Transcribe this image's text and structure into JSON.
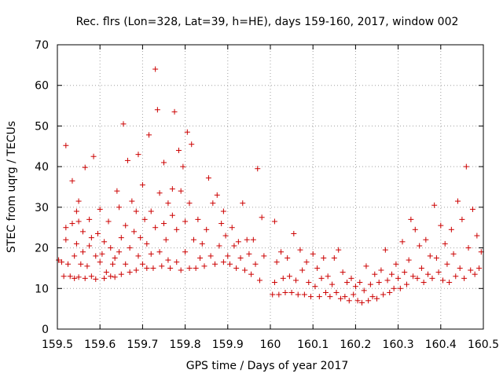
{
  "chart_data": {
    "type": "scatter",
    "title": "Rec. flrs (Lon=328, Lat=39, h=HE), days 159-160, 2017, window 002",
    "xlabel": "GPS time / Days of year 2017",
    "ylabel": "STEC from uqrg / TECUs",
    "xlim": [
      159.5,
      160.5
    ],
    "ylim": [
      0,
      70
    ],
    "xticks": [
      159.5,
      159.6,
      159.7,
      159.8,
      159.9,
      160,
      160.1,
      160.2,
      160.3,
      160.4,
      160.5
    ],
    "xtick_labels": [
      "159.5",
      "159.6",
      "159.7",
      "159.8",
      "159.9",
      "160",
      "160.1",
      "160.2",
      "160.3",
      "160.4",
      "160.5"
    ],
    "yticks": [
      0,
      10,
      20,
      30,
      40,
      50,
      60,
      70
    ],
    "ytick_labels": [
      "0",
      "10",
      "20",
      "30",
      "40",
      "50",
      "60",
      "70"
    ],
    "grid": true,
    "marker": "+",
    "marker_color": "#cc0000",
    "series": [
      {
        "name": "STEC",
        "points": [
          [
            159.503,
            17.0
          ],
          [
            159.51,
            16.5
          ],
          [
            159.515,
            13.0
          ],
          [
            159.52,
            45.2
          ],
          [
            159.52,
            25.0
          ],
          [
            159.52,
            22.0
          ],
          [
            159.525,
            16.0
          ],
          [
            159.53,
            13.0
          ],
          [
            159.535,
            26.0
          ],
          [
            159.535,
            36.5
          ],
          [
            159.54,
            12.5
          ],
          [
            159.54,
            18.0
          ],
          [
            159.545,
            21.0
          ],
          [
            159.545,
            29.0
          ],
          [
            159.55,
            26.5
          ],
          [
            159.55,
            31.5
          ],
          [
            159.55,
            12.8
          ],
          [
            159.555,
            16.0
          ],
          [
            159.56,
            24.0
          ],
          [
            159.56,
            19.0
          ],
          [
            159.565,
            12.5
          ],
          [
            159.565,
            39.8
          ],
          [
            159.57,
            15.5
          ],
          [
            159.575,
            20.5
          ],
          [
            159.575,
            27.0
          ],
          [
            159.58,
            13.0
          ],
          [
            159.58,
            22.5
          ],
          [
            159.585,
            42.5
          ],
          [
            159.59,
            18.0
          ],
          [
            159.59,
            12.3
          ],
          [
            159.595,
            23.5
          ],
          [
            159.6,
            16.5
          ],
          [
            159.6,
            29.5
          ],
          [
            159.605,
            18.5
          ],
          [
            159.61,
            12.5
          ],
          [
            159.61,
            21.5
          ],
          [
            159.615,
            14.0
          ],
          [
            159.62,
            26.5
          ],
          [
            159.625,
            13.0
          ],
          [
            159.625,
            20.0
          ],
          [
            159.63,
            16.0
          ],
          [
            159.635,
            17.5
          ],
          [
            159.635,
            12.8
          ],
          [
            159.64,
            34.0
          ],
          [
            159.645,
            19.0
          ],
          [
            159.645,
            30.0
          ],
          [
            159.65,
            13.5
          ],
          [
            159.65,
            22.5
          ],
          [
            159.655,
            50.5
          ],
          [
            159.66,
            16.0
          ],
          [
            159.66,
            25.5
          ],
          [
            159.665,
            41.5
          ],
          [
            159.67,
            14.0
          ],
          [
            159.67,
            20.0
          ],
          [
            159.675,
            31.5
          ],
          [
            159.68,
            24.0
          ],
          [
            159.685,
            14.5
          ],
          [
            159.685,
            29.0
          ],
          [
            159.69,
            43.0
          ],
          [
            159.69,
            18.0
          ],
          [
            159.695,
            22.5
          ],
          [
            159.7,
            16.0
          ],
          [
            159.7,
            35.5
          ],
          [
            159.705,
            27.0
          ],
          [
            159.71,
            15.0
          ],
          [
            159.71,
            21.0
          ],
          [
            159.715,
            47.8
          ],
          [
            159.72,
            18.5
          ],
          [
            159.72,
            29.0
          ],
          [
            159.725,
            15.0
          ],
          [
            159.73,
            64.0
          ],
          [
            159.73,
            25.0
          ],
          [
            159.735,
            54.0
          ],
          [
            159.74,
            19.0
          ],
          [
            159.74,
            33.5
          ],
          [
            159.745,
            15.5
          ],
          [
            159.75,
            26.0
          ],
          [
            159.75,
            41.0
          ],
          [
            159.755,
            22.0
          ],
          [
            159.76,
            17.0
          ],
          [
            159.76,
            31.0
          ],
          [
            159.765,
            15.0
          ],
          [
            159.77,
            28.0
          ],
          [
            159.77,
            34.5
          ],
          [
            159.775,
            53.5
          ],
          [
            159.78,
            16.5
          ],
          [
            159.78,
            24.5
          ],
          [
            159.785,
            44.0
          ],
          [
            159.79,
            14.5
          ],
          [
            159.79,
            34.0
          ],
          [
            159.795,
            40.0
          ],
          [
            159.8,
            19.0
          ],
          [
            159.8,
            26.5
          ],
          [
            159.805,
            48.5
          ],
          [
            159.81,
            15.0
          ],
          [
            159.81,
            31.0
          ],
          [
            159.815,
            45.5
          ],
          [
            159.82,
            22.0
          ],
          [
            159.825,
            15.0
          ],
          [
            159.83,
            27.0
          ],
          [
            159.835,
            17.5
          ],
          [
            159.84,
            21.0
          ],
          [
            159.845,
            15.5
          ],
          [
            159.85,
            24.5
          ],
          [
            159.855,
            37.2
          ],
          [
            159.86,
            18.0
          ],
          [
            159.865,
            31.0
          ],
          [
            159.87,
            16.0
          ],
          [
            159.875,
            33.0
          ],
          [
            159.88,
            20.5
          ],
          [
            159.885,
            26.0
          ],
          [
            159.89,
            16.5
          ],
          [
            159.89,
            29.0
          ],
          [
            159.895,
            23.0
          ],
          [
            159.9,
            18.0
          ],
          [
            159.905,
            16.0
          ],
          [
            159.91,
            25.0
          ],
          [
            159.915,
            20.5
          ],
          [
            159.92,
            15.0
          ],
          [
            159.925,
            21.5
          ],
          [
            159.93,
            17.5
          ],
          [
            159.935,
            31.0
          ],
          [
            159.94,
            14.5
          ],
          [
            159.945,
            22.0
          ],
          [
            159.95,
            18.5
          ],
          [
            159.955,
            13.5
          ],
          [
            159.96,
            22.0
          ],
          [
            159.965,
            16.0
          ],
          [
            159.97,
            39.5
          ],
          [
            159.975,
            12.0
          ],
          [
            159.98,
            27.5
          ],
          [
            159.985,
            18.0
          ],
          [
            160.005,
            8.5
          ],
          [
            160.01,
            26.5
          ],
          [
            160.01,
            11.5
          ],
          [
            160.015,
            16.5
          ],
          [
            160.02,
            8.5
          ],
          [
            160.025,
            19.0
          ],
          [
            160.03,
            12.5
          ],
          [
            160.035,
            9.0
          ],
          [
            160.04,
            17.5
          ],
          [
            160.045,
            13.0
          ],
          [
            160.05,
            9.0
          ],
          [
            160.055,
            23.5
          ],
          [
            160.06,
            12.0
          ],
          [
            160.065,
            8.5
          ],
          [
            160.07,
            19.5
          ],
          [
            160.075,
            14.5
          ],
          [
            160.08,
            8.5
          ],
          [
            160.085,
            16.5
          ],
          [
            160.09,
            11.5
          ],
          [
            160.095,
            8.0
          ],
          [
            160.1,
            18.5
          ],
          [
            160.105,
            10.5
          ],
          [
            160.11,
            15.0
          ],
          [
            160.115,
            8.0
          ],
          [
            160.12,
            12.5
          ],
          [
            160.125,
            17.5
          ],
          [
            160.13,
            9.0
          ],
          [
            160.135,
            13.0
          ],
          [
            160.14,
            8.0
          ],
          [
            160.145,
            11.0
          ],
          [
            160.15,
            17.5
          ],
          [
            160.155,
            9.0
          ],
          [
            160.16,
            19.5
          ],
          [
            160.165,
            7.5
          ],
          [
            160.17,
            14.0
          ],
          [
            160.175,
            8.0
          ],
          [
            160.18,
            11.5
          ],
          [
            160.185,
            7.0
          ],
          [
            160.19,
            12.5
          ],
          [
            160.195,
            8.5
          ],
          [
            160.2,
            10.5
          ],
          [
            160.205,
            7.0
          ],
          [
            160.21,
            11.5
          ],
          [
            160.215,
            6.5
          ],
          [
            160.22,
            9.5
          ],
          [
            160.225,
            15.5
          ],
          [
            160.23,
            7.0
          ],
          [
            160.235,
            11.0
          ],
          [
            160.24,
            8.0
          ],
          [
            160.245,
            13.5
          ],
          [
            160.25,
            7.5
          ],
          [
            160.255,
            11.5
          ],
          [
            160.26,
            14.5
          ],
          [
            160.265,
            8.5
          ],
          [
            160.27,
            19.5
          ],
          [
            160.275,
            12.0
          ],
          [
            160.28,
            9.0
          ],
          [
            160.285,
            13.5
          ],
          [
            160.29,
            10.0
          ],
          [
            160.295,
            16.0
          ],
          [
            160.3,
            12.5
          ],
          [
            160.305,
            10.0
          ],
          [
            160.31,
            21.5
          ],
          [
            160.315,
            14.0
          ],
          [
            160.32,
            11.0
          ],
          [
            160.325,
            17.0
          ],
          [
            160.33,
            27.0
          ],
          [
            160.335,
            13.0
          ],
          [
            160.34,
            24.5
          ],
          [
            160.345,
            12.5
          ],
          [
            160.35,
            20.5
          ],
          [
            160.355,
            15.0
          ],
          [
            160.36,
            11.5
          ],
          [
            160.365,
            22.0
          ],
          [
            160.37,
            13.5
          ],
          [
            160.375,
            18.0
          ],
          [
            160.38,
            12.5
          ],
          [
            160.385,
            30.5
          ],
          [
            160.39,
            17.5
          ],
          [
            160.395,
            14.0
          ],
          [
            160.4,
            25.5
          ],
          [
            160.405,
            12.0
          ],
          [
            160.41,
            21.0
          ],
          [
            160.415,
            16.0
          ],
          [
            160.42,
            11.5
          ],
          [
            160.425,
            24.5
          ],
          [
            160.43,
            18.5
          ],
          [
            160.435,
            13.0
          ],
          [
            160.44,
            31.5
          ],
          [
            160.445,
            15.0
          ],
          [
            160.45,
            27.0
          ],
          [
            160.455,
            12.5
          ],
          [
            160.46,
            40.0
          ],
          [
            160.465,
            20.0
          ],
          [
            160.47,
            14.5
          ],
          [
            160.475,
            29.5
          ],
          [
            160.48,
            13.5
          ],
          [
            160.485,
            23.0
          ],
          [
            160.49,
            15.0
          ],
          [
            160.495,
            19.0
          ]
        ]
      }
    ]
  }
}
